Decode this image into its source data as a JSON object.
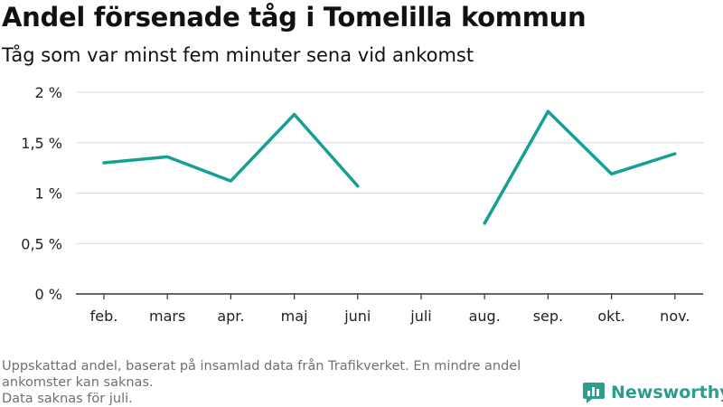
{
  "header": {
    "title": "Andel försenade tåg i Tomelilla kommun",
    "subtitle": "Tåg som var minst fem minuter sena vid ankomst"
  },
  "chart_data": {
    "type": "line",
    "categories": [
      "feb.",
      "mars",
      "apr.",
      "maj",
      "juni",
      "juli",
      "aug.",
      "sep.",
      "okt.",
      "nov."
    ],
    "series": [
      {
        "values": [
          1.3,
          1.36,
          1.12,
          1.78,
          1.07,
          null,
          0.7,
          1.81,
          1.19,
          1.39
        ],
        "color": "#16a092"
      }
    ],
    "ylim": [
      0,
      2
    ],
    "yticks": [
      0,
      0.5,
      1,
      1.5,
      2
    ],
    "ytick_labels": [
      "0 %",
      "0,5 %",
      "1 %",
      "1,5 %",
      "2 %"
    ],
    "grid": true,
    "gridline_color": "#d9d9d9",
    "axis_color": "#333333"
  },
  "footer": {
    "note_lines": [
      "Uppskattad andel, baserat på insamlad data från Trafikverket. En mindre andel",
      "ankomster kan saknas.",
      "Data saknas för juli."
    ],
    "brand": "Newsworthy",
    "brand_icon": "newsworthy-logo-icon",
    "brand_color": "#2a9d8f"
  }
}
